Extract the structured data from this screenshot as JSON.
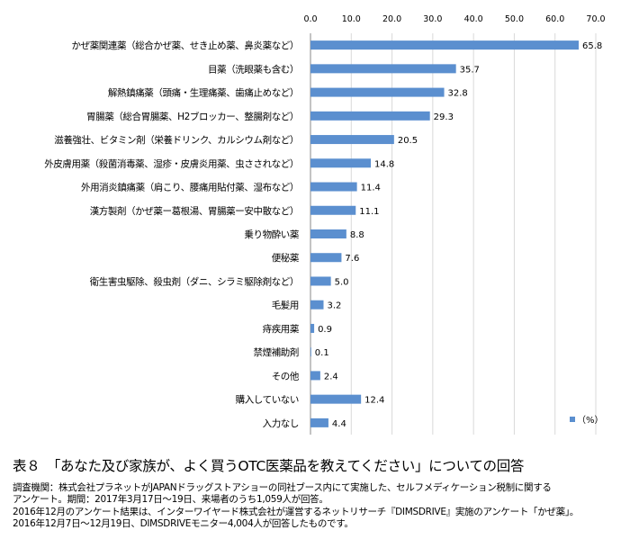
{
  "chart_data": {
    "type": "bar",
    "orientation": "horizontal",
    "categories": [
      "かぜ薬関連薬（総合かぜ薬、せき止め薬、鼻炎薬など）",
      "目薬（洗眼薬も含む）",
      "解熱鎮痛薬（頭痛・生理痛薬、歯痛止めなど）",
      "胃腸薬（総合胃腸薬、H2ブロッカー、整腸剤など）",
      "滋養強壮、ビタミン剤（栄養ドリンク、カルシウム剤など）",
      "外皮膚用薬（殺菌消毒薬、湿疹・皮膚炎用薬、虫さされなど）",
      "外用消炎鎮痛薬（肩こり、腰痛用貼付薬、湿布など）",
      "漢方製剤（かぜ薬ー葛根湯、胃腸薬ー安中散など）",
      "乗り物酔い薬",
      "便秘薬",
      "衛生害虫駆除、殺虫剤（ダニ、シラミ駆除剤など）",
      "毛髪用",
      "痔疾用薬",
      "禁煙補助剤",
      "その他",
      "購入していない",
      "入力なし"
    ],
    "values": [
      65.8,
      35.7,
      32.8,
      29.3,
      20.5,
      14.8,
      11.4,
      11.1,
      8.8,
      7.6,
      5.0,
      3.2,
      0.9,
      0.1,
      2.4,
      12.4,
      4.4
    ],
    "value_labels": [
      "65.8",
      "35.7",
      "32.8",
      "29.3",
      "20.5",
      "14.8",
      "11.4",
      "11.1",
      "8.8",
      "7.6",
      "5.0",
      "3.2",
      "0.9",
      "0.1",
      "2.4",
      "12.4",
      "4.4"
    ],
    "xlim": [
      0,
      70
    ],
    "xticks": [
      "0.0",
      "10.0",
      "20.0",
      "30.0",
      "40.0",
      "50.0",
      "60.0",
      "70.0"
    ],
    "x_axis_position": "top",
    "grid": true,
    "legend": {
      "label": "（%）",
      "position": "bottom-right"
    },
    "bar_color": "#5b8fcf"
  },
  "caption": {
    "title": "表８　「あなた及び家族が、よく買うOTC医薬品を教えてください」についての回答",
    "notes": [
      "調査機関：株式会社プラネットがJAPANドラッグストアショーの同社ブース内にて実施した、セルフメディケーション税制に関する",
      "アンケート。期間：2017年3月17日〜19日、来場者のうち1,059人が回答。",
      "2016年12月のアンケート結果は、インターワイヤード株式会社が運営するネットリサーチ『DIMSDRIVE』実施のアンケート「かぜ薬」。",
      "2016年12月7日〜12月19日、DIMSDRIVEモニター4,004人が回答したものです。"
    ]
  }
}
